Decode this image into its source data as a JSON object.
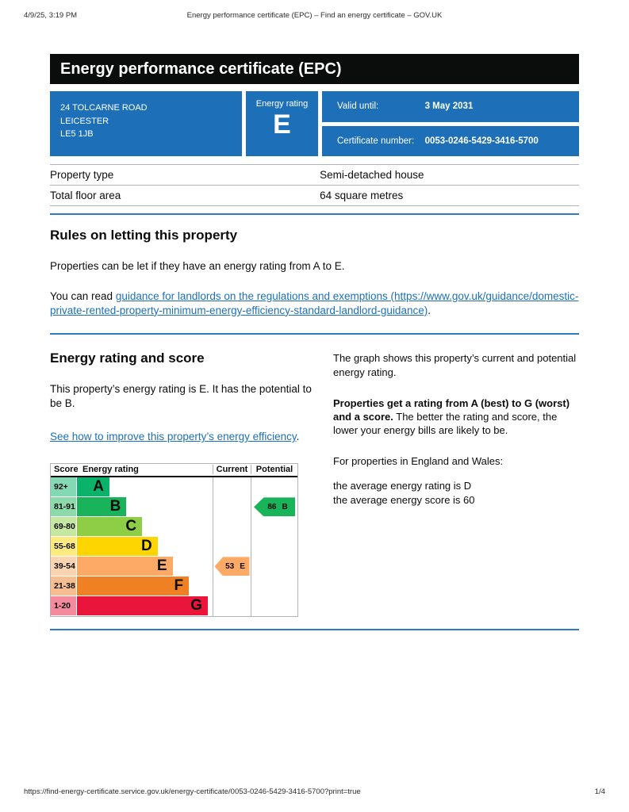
{
  "print_header": {
    "datetime": "4/9/25, 3:19 PM",
    "doc_title": "Energy performance certificate (EPC) – Find an energy certificate – GOV.UK"
  },
  "banner": {
    "title": "Energy performance certificate (EPC)"
  },
  "summary": {
    "address_lines": [
      "24 TOLCARNE ROAD",
      "LEICESTER",
      "LE5 1JB"
    ],
    "energy_rating_label": "Energy rating",
    "energy_rating": "E",
    "valid_until_label": "Valid until:",
    "valid_until": "3 May 2031",
    "certificate_number_label": "Certificate number:",
    "certificate_number": "0053-0246-5429-3416-5700"
  },
  "property_table": {
    "rows": [
      {
        "label": "Property type",
        "value": "Semi-detached house"
      },
      {
        "label": "Total floor area",
        "value": "64 square metres"
      }
    ]
  },
  "rules_section": {
    "heading": "Rules on letting this property",
    "para1": "Properties can be let if they have an energy rating from A to E.",
    "para2_prefix": "You can read ",
    "para2_link": "guidance for landlords on the regulations and exemptions (https://www.gov.uk/guidance/domestic-private-rented-property-minimum-energy-efficiency-standard-landlord-guidance)",
    "para2_suffix": "."
  },
  "rating_section": {
    "heading": "Energy rating and score",
    "para1": "This property’s energy rating is E. It has the potential to be B.",
    "link": "See how to improve this property’s energy efficiency",
    "link_suffix": ".",
    "right_para1": "The graph shows this property’s current and potential energy rating.",
    "right_para2_bold": "Properties get a rating from A (best) to G (worst) and a score.",
    "right_para2_rest": " The better the rating and score, the lower your energy bills are likely to be.",
    "right_para3": "For properties in England and Wales:",
    "right_line1": "the average energy rating is D",
    "right_line2": "the average energy score is 60"
  },
  "chart_data": {
    "type": "bar",
    "columns": [
      "Score",
      "Energy rating",
      "Current",
      "Potential"
    ],
    "bands": [
      {
        "score_range": "92+",
        "letter": "A",
        "width_pct": 24,
        "color": "#0bb269",
        "light_color": "#85d8b4"
      },
      {
        "score_range": "81-91",
        "letter": "B",
        "width_pct": 36.5,
        "color": "#19b459",
        "light_color": "#8cd9ac"
      },
      {
        "score_range": "69-80",
        "letter": "C",
        "width_pct": 48,
        "color": "#8dce46",
        "light_color": "#c6e7a2"
      },
      {
        "score_range": "55-68",
        "letter": "D",
        "width_pct": 59.5,
        "color": "#ffd500",
        "light_color": "#ffea80"
      },
      {
        "score_range": "39-54",
        "letter": "E",
        "width_pct": 70.5,
        "color": "#fcaa65",
        "light_color": "#fdd4b2"
      },
      {
        "score_range": "21-38",
        "letter": "F",
        "width_pct": 82.5,
        "color": "#ef8023",
        "light_color": "#f7bf91"
      },
      {
        "score_range": "1-20",
        "letter": "G",
        "width_pct": 96.5,
        "color": "#e9153b",
        "light_color": "#f48a9d"
      }
    ],
    "current": {
      "score": 53,
      "band": "E",
      "color": "#fcaa65"
    },
    "potential": {
      "score": 86,
      "band": "B",
      "color": "#19b459"
    }
  },
  "footer": {
    "url": "https://find-energy-certificate.service.gov.uk/energy-certificate/0053-0246-5429-3416-5700?print=true",
    "page": "1/4"
  },
  "colors": {
    "govuk_blue": "#1d70b8",
    "banner_black": "#0b0c0c",
    "rule_blue": "#2e7cbe",
    "border_gray": "#b1b4b6"
  }
}
